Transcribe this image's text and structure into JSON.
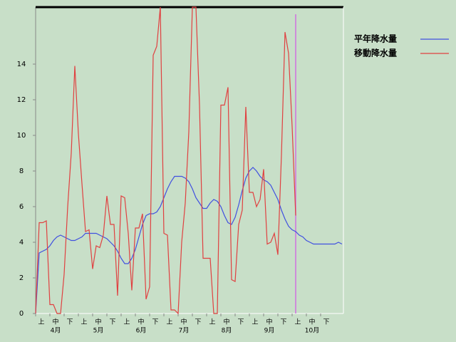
{
  "chart_data": {
    "type": "line",
    "series": [
      {
        "name": "平年降水量",
        "color": "#4050e0",
        "values": [
          0,
          3.4,
          3.5,
          3.6,
          3.8,
          4.1,
          4.3,
          4.4,
          4.3,
          4.2,
          4.1,
          4.1,
          4.2,
          4.3,
          4.5,
          4.5,
          4.5,
          4.5,
          4.4,
          4.3,
          4.2,
          4.0,
          3.8,
          3.5,
          3.1,
          2.8,
          2.8,
          3.1,
          3.6,
          4.3,
          5.0,
          5.5,
          5.6,
          5.6,
          5.7,
          6.0,
          6.5,
          7.0,
          7.4,
          7.7,
          7.7,
          7.7,
          7.6,
          7.4,
          7.0,
          6.5,
          6.2,
          5.9,
          5.9,
          6.2,
          6.4,
          6.3,
          6.0,
          5.5,
          5.1,
          5.0,
          5.4,
          6.1,
          6.9,
          7.6,
          8.0,
          8.2,
          8.0,
          7.7,
          7.5,
          7.4,
          7.2,
          6.8,
          6.4,
          5.8,
          5.3,
          4.9,
          4.7,
          4.6,
          4.4,
          4.3,
          4.1,
          4.0,
          3.9,
          3.9,
          3.9,
          3.9,
          3.9,
          3.9,
          3.9,
          4.0,
          3.9
        ]
      },
      {
        "name": "移動降水量",
        "color": "#e04040",
        "values": [
          0,
          5.1,
          5.1,
          5.2,
          0.5,
          0.5,
          0,
          0,
          2.2,
          6,
          9,
          13.9,
          10.1,
          7.3,
          4.6,
          4.7,
          2.5,
          3.8,
          3.7,
          4.4,
          6.6,
          5.0,
          5.0,
          1.0,
          6.6,
          6.5,
          4.5,
          1.3,
          4.8,
          4.8,
          5.6,
          0.8,
          1.5,
          14.5,
          15,
          17.2,
          4.5,
          4.4,
          0.2,
          0.2,
          0,
          4.0,
          6.2,
          10.2,
          17.2,
          17.2,
          11.7,
          3.1,
          3.1,
          3.1,
          0,
          0,
          11.7,
          11.7,
          12.7,
          1.9,
          1.8,
          5,
          5.8,
          11.6,
          6.8,
          6.8,
          6.0,
          6.4,
          8.1,
          3.9,
          4.0,
          4.5,
          3.3,
          8.9,
          15.8,
          14.6,
          10.5,
          5.5,
          null,
          null,
          null,
          null,
          null,
          null,
          null,
          null,
          null,
          null,
          null,
          null,
          null
        ]
      }
    ],
    "now_line": {
      "index": 73,
      "color": "#d070e0"
    },
    "dekads": [
      "上",
      "中",
      "下",
      "上",
      "中",
      "下",
      "上",
      "中",
      "下",
      "上",
      "中",
      "下",
      "上",
      "中",
      "下",
      "上",
      "中",
      "下",
      "上",
      "中",
      "下"
    ],
    "months": [
      "4月",
      "5月",
      "6月",
      "7月",
      "8月",
      "9月",
      "10月"
    ],
    "ylim": [
      0,
      17.2
    ],
    "yticks": [
      0,
      2,
      4,
      6,
      8,
      10,
      12,
      14
    ]
  }
}
